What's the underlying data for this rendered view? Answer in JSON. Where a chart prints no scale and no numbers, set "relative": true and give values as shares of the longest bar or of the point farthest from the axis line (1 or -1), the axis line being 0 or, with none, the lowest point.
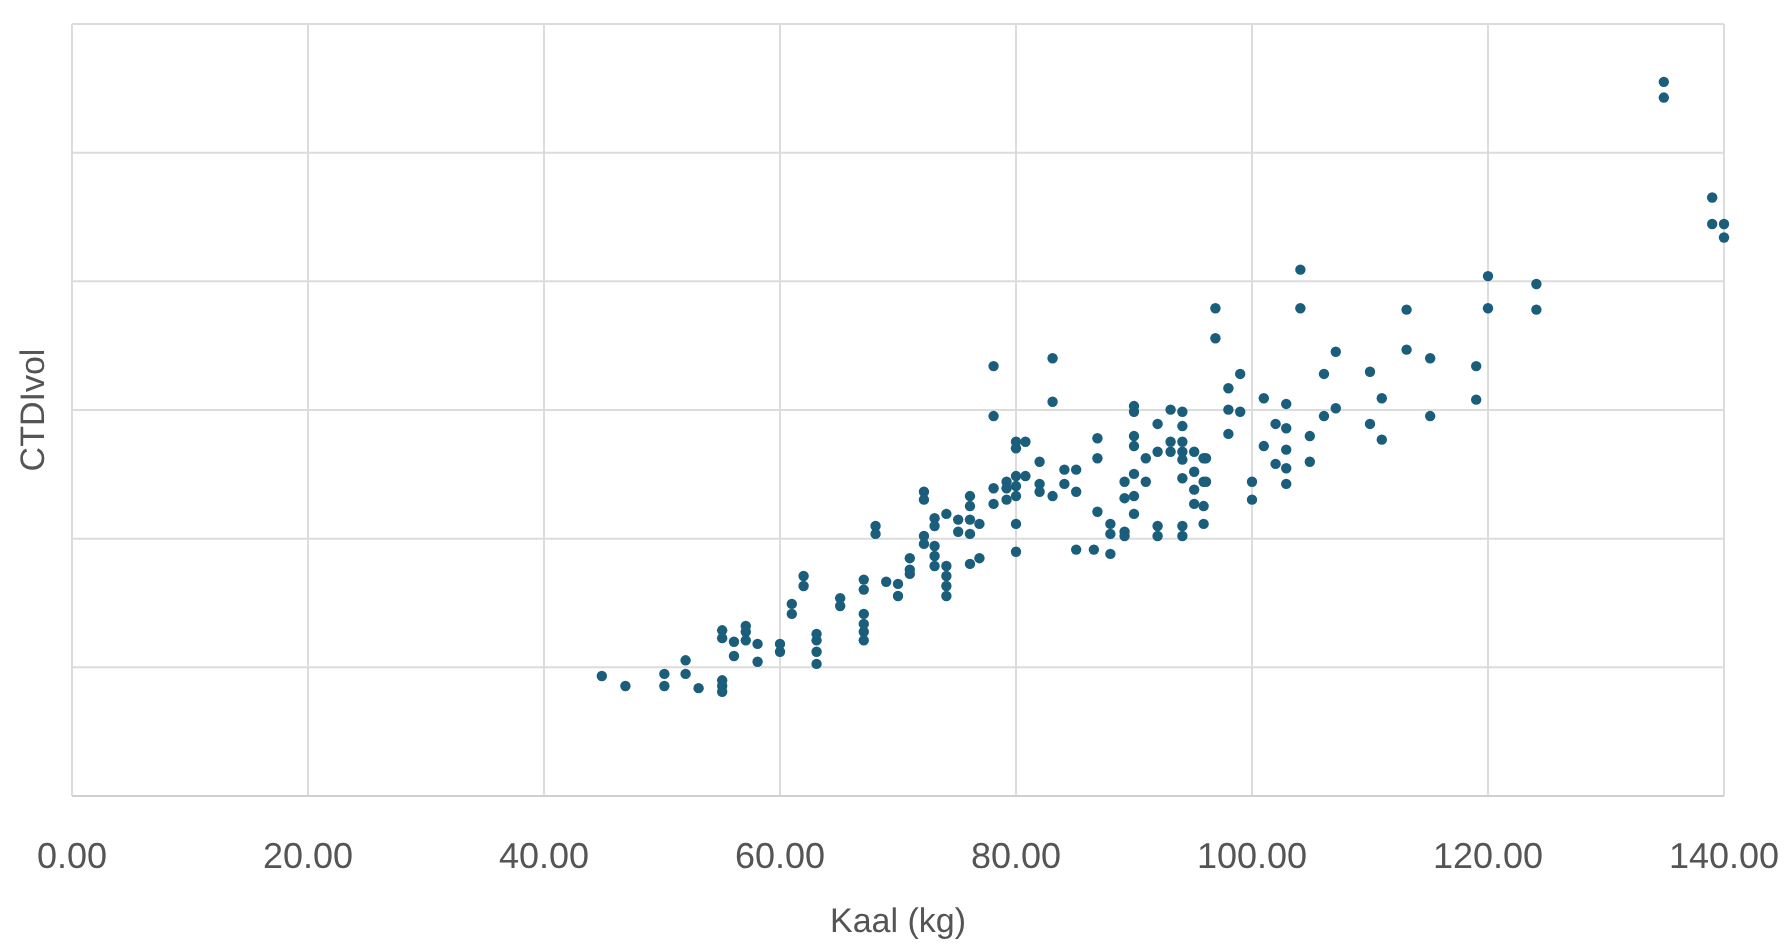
{
  "chart_data": {
    "type": "scatter",
    "xlabel": "Kaal (kg)",
    "ylabel": "CTDIvol",
    "relative": true,
    "grid": true,
    "tick_labels": "x",
    "marker": "circle",
    "xlim": [
      0,
      140
    ],
    "xticks": [
      {
        "value": 0,
        "label": "0.00"
      },
      {
        "value": 20,
        "label": "20.00"
      },
      {
        "value": 40,
        "label": "40.00"
      },
      {
        "value": 60,
        "label": "60.00"
      },
      {
        "value": 80,
        "label": "80.00"
      },
      {
        "value": 100,
        "label": "100.00"
      },
      {
        "value": 120,
        "label": "120.00"
      },
      {
        "value": 140,
        "label": "140.00"
      }
    ],
    "series": [
      {
        "color": "#1b5e7b",
        "x": [
          44.9,
          46.9,
          50.2,
          50.2,
          52.0,
          52.0,
          53.1,
          55.1,
          55.1,
          55.1,
          55.1,
          55.1,
          56.1,
          56.1,
          57.1,
          57.1,
          57.1,
          58.1,
          58.1,
          60.0,
          60.0,
          61.0,
          61.0,
          62.0,
          62.0,
          63.1,
          63.1,
          63.1,
          63.1,
          65.1,
          65.1,
          67.1,
          67.1,
          67.1,
          67.1,
          67.1,
          67.1,
          68.1,
          68.1,
          69.0,
          70.0,
          70.0,
          71.0,
          71.0,
          72.2,
          72.2,
          72.2,
          72.2,
          73.1,
          73.1,
          74.1,
          73.1,
          73.1,
          73.1,
          74.1,
          74.1,
          74.1,
          74.1,
          78.1,
          78.1,
          83.1,
          83.1,
          80.0,
          80.8,
          80.0,
          79.2,
          79.2,
          78.1,
          80.0,
          80.0,
          80.0,
          80.8,
          82.0,
          82.0,
          82.0,
          83.1,
          84.1,
          85.1,
          84.1,
          85.1,
          86.9,
          86.9,
          89.2,
          90.0,
          90.0,
          90.0,
          90.0,
          91.0,
          90.0,
          91.0,
          92.0,
          92.0,
          93.1,
          94.1,
          94.1,
          93.1,
          94.1,
          93.1,
          94.1,
          94.1,
          95.1,
          95.9,
          94.1,
          95.1,
          95.9,
          95.1,
          95.1,
          95.9,
          96.9,
          99.0,
          98.0,
          98.0,
          99.0,
          98.0,
          100.0,
          100.0,
          101.0,
          102.0,
          101.0,
          102.0,
          85.1,
          86.6,
          88.0,
          88.0,
          88.0,
          89.2,
          89.2,
          86.9,
          90.0,
          90.0,
          89.2,
          92.0,
          92.0,
          94.1,
          94.1,
          95.9,
          80.0,
          80.0,
          76.9,
          76.1,
          76.1,
          76.1,
          76.1,
          75.1,
          75.1,
          71.0,
          76.1,
          76.9,
          78.1,
          79.2,
          96.9,
          104.1,
          104.1,
          102.9,
          102.9,
          102.9,
          102.9,
          102.9,
          96.1,
          96.1,
          104.9,
          104.9,
          106.1,
          106.1,
          107.1,
          107.1,
          110.0,
          110.0,
          111.0,
          111.0,
          113.1,
          113.1,
          115.1,
          115.1,
          119.0,
          119.0,
          120.0,
          120.0,
          124.1,
          124.1,
          134.9,
          134.9,
          139.0,
          139.0,
          140.0,
          140.0
        ],
        "values": [
          0.168,
          0.154,
          0.171,
          0.154,
          0.19,
          0.171,
          0.151,
          0.162,
          0.154,
          0.146,
          0.232,
          0.221,
          0.216,
          0.196,
          0.238,
          0.23,
          0.218,
          0.213,
          0.188,
          0.213,
          0.202,
          0.269,
          0.255,
          0.308,
          0.294,
          0.227,
          0.218,
          0.202,
          0.185,
          0.277,
          0.266,
          0.303,
          0.289,
          0.255,
          0.241,
          0.23,
          0.218,
          0.378,
          0.367,
          0.3,
          0.297,
          0.28,
          0.333,
          0.311,
          0.426,
          0.415,
          0.364,
          0.353,
          0.389,
          0.378,
          0.395,
          0.35,
          0.336,
          0.322,
          0.322,
          0.308,
          0.294,
          0.28,
          0.602,
          0.532,
          0.613,
          0.552,
          0.496,
          0.496,
          0.487,
          0.44,
          0.431,
          0.431,
          0.448,
          0.434,
          0.42,
          0.448,
          0.468,
          0.437,
          0.426,
          0.42,
          0.457,
          0.457,
          0.437,
          0.426,
          0.501,
          0.473,
          0.44,
          0.546,
          0.538,
          0.504,
          0.49,
          0.473,
          0.451,
          0.44,
          0.521,
          0.482,
          0.541,
          0.538,
          0.518,
          0.496,
          0.496,
          0.482,
          0.482,
          0.471,
          0.482,
          0.473,
          0.445,
          0.454,
          0.44,
          0.429,
          0.409,
          0.406,
          0.641,
          0.591,
          0.571,
          0.541,
          0.538,
          0.507,
          0.44,
          0.415,
          0.557,
          0.521,
          0.49,
          0.465,
          0.345,
          0.345,
          0.381,
          0.367,
          0.339,
          0.37,
          0.364,
          0.398,
          0.42,
          0.395,
          0.417,
          0.378,
          0.364,
          0.378,
          0.364,
          0.381,
          0.381,
          0.342,
          0.381,
          0.42,
          0.406,
          0.387,
          0.367,
          0.387,
          0.37,
          0.317,
          0.325,
          0.333,
          0.409,
          0.415,
          0.683,
          0.737,
          0.683,
          0.549,
          0.515,
          0.485,
          0.459,
          0.437,
          0.473,
          0.44,
          0.504,
          0.468,
          0.591,
          0.532,
          0.622,
          0.543,
          0.594,
          0.521,
          0.557,
          0.499,
          0.681,
          0.625,
          0.613,
          0.532,
          0.602,
          0.555,
          0.728,
          0.683,
          0.717,
          0.681,
          1.0,
          0.978,
          0.838,
          0.801,
          0.801,
          0.782
        ]
      }
    ]
  }
}
